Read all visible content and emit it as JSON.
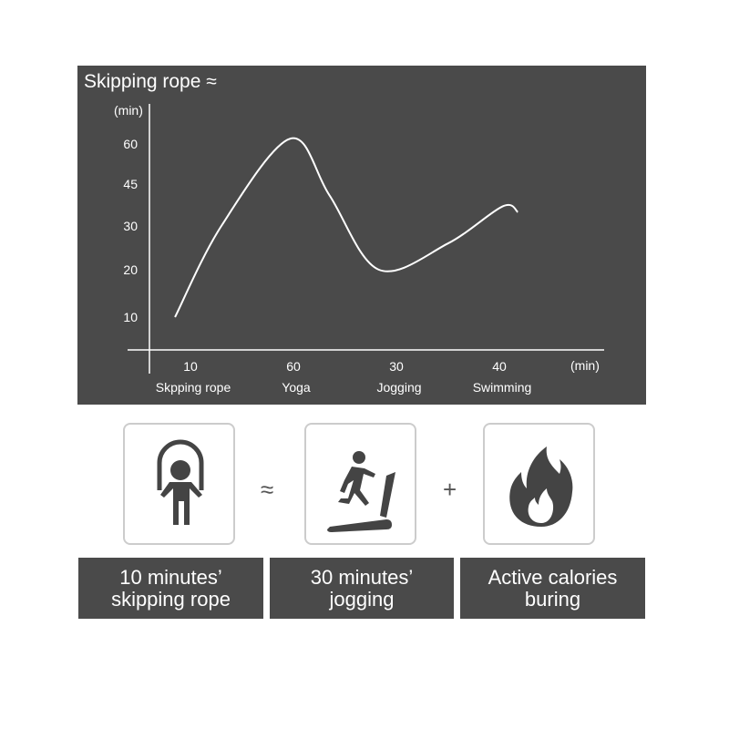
{
  "chart_data": {
    "type": "line",
    "title": "Skipping rope ≈",
    "ylabel": "(min)",
    "xlabel": "(min)",
    "yticks": [
      10,
      20,
      30,
      45,
      60
    ],
    "categories": [
      {
        "value": "10",
        "name": "Skpping rope"
      },
      {
        "value": "60",
        "name": "Yoga"
      },
      {
        "value": "30",
        "name": "Jogging"
      },
      {
        "value": "40",
        "name": "Swimming"
      }
    ],
    "curve": [
      [
        -0.15,
        10
      ],
      [
        0.3,
        30
      ],
      [
        0.97,
        62
      ],
      [
        1.35,
        41
      ],
      [
        1.83,
        20
      ],
      [
        2.5,
        26
      ],
      [
        3.03,
        37
      ],
      [
        3.18,
        35
      ]
    ],
    "grid": false,
    "colors": {
      "background": "#4a4a4a",
      "line": "#ffffff"
    }
  },
  "equation": {
    "cards": [
      {
        "icon": "jump-rope-icon",
        "caption": "10 minutes’\nskipping rope"
      },
      {
        "icon": "treadmill-runner-icon",
        "caption": "30 minutes’\njogging"
      },
      {
        "icon": "flame-icon",
        "caption": "Active calories\nburing"
      }
    ],
    "operators": [
      "≈",
      "+"
    ]
  }
}
